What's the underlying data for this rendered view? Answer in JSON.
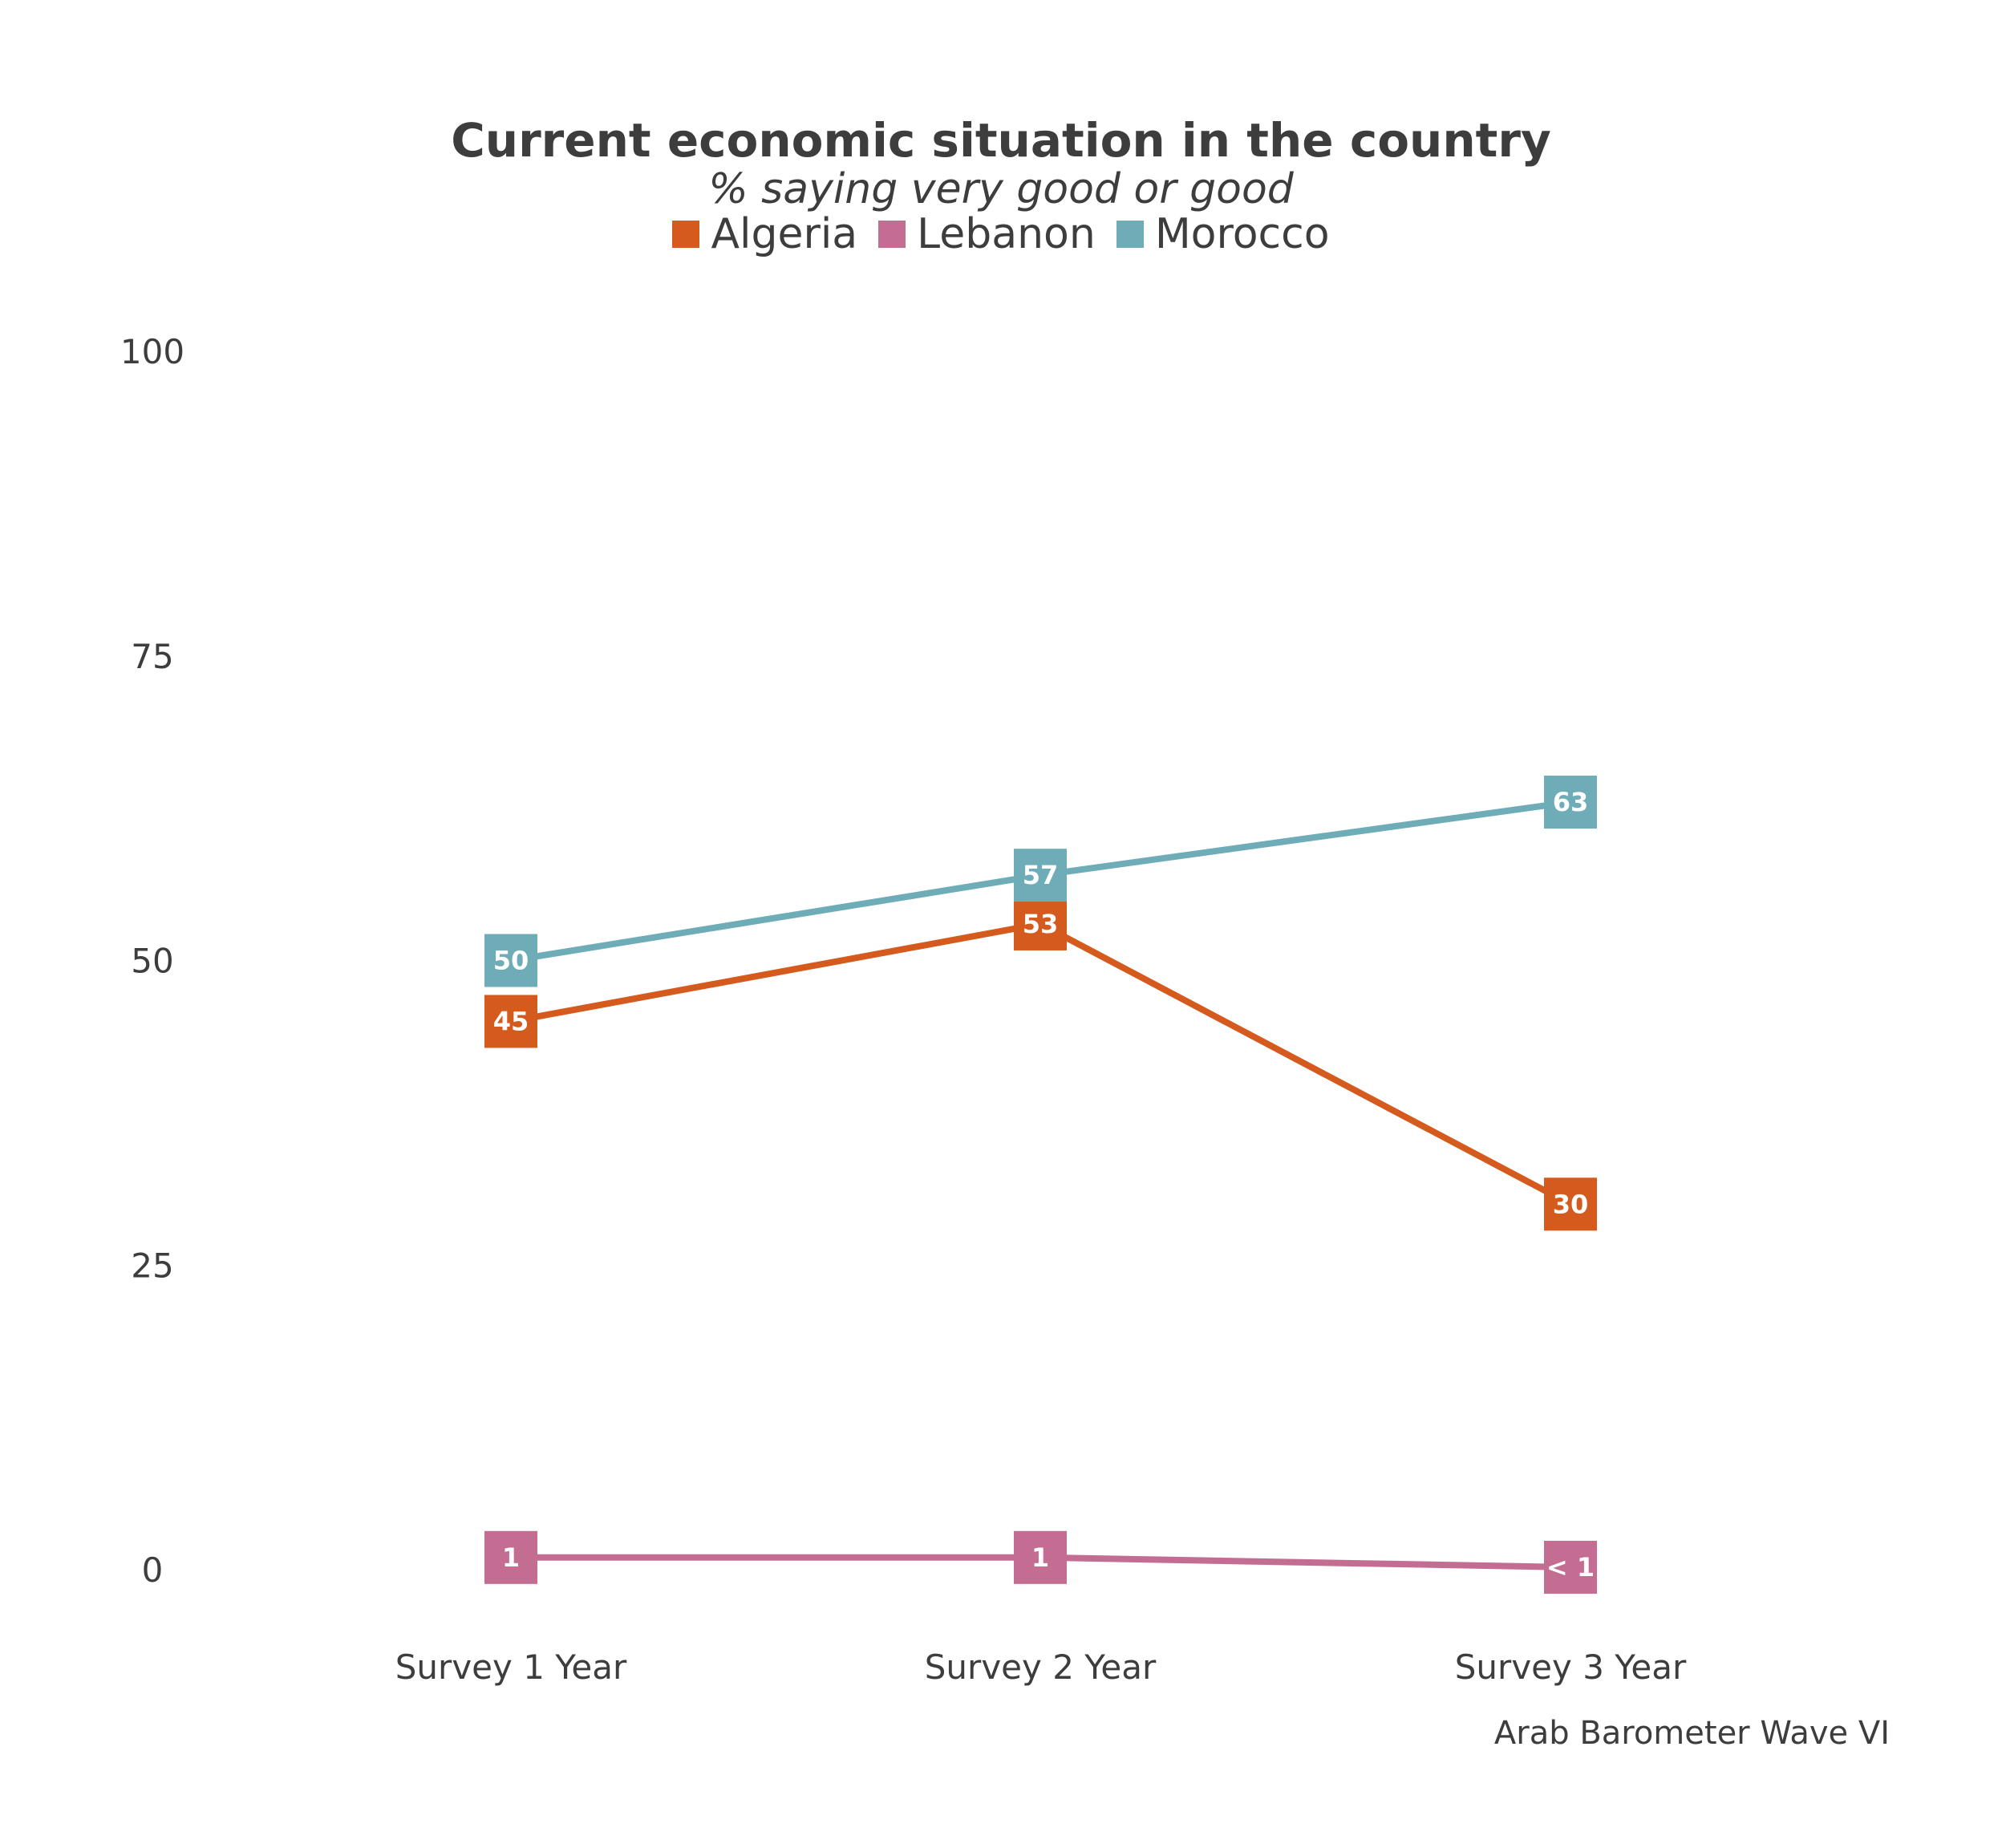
{
  "chart_data": {
    "type": "line",
    "title": "Current economic situation in the country",
    "subtitle": "% saying very good or good",
    "categories": [
      "Survey 1 Year",
      "Survey 2 Year",
      "Survey 3 Year"
    ],
    "ylim": [
      0,
      100
    ],
    "yticks": [
      "0",
      "25",
      "50",
      "75",
      "100"
    ],
    "grid": false,
    "legend_position": "top",
    "series": [
      {
        "name": "Algeria",
        "color": "#d55a1e",
        "values": [
          45,
          53,
          30
        ],
        "labels": [
          "45",
          "53",
          "30"
        ]
      },
      {
        "name": "Lebanon",
        "color": "#c46d93",
        "values": [
          1,
          1,
          0.2
        ],
        "labels": [
          "1",
          "1",
          "< 1"
        ]
      },
      {
        "name": "Morocco",
        "color": "#6eadb8",
        "values": [
          50,
          57,
          63
        ],
        "labels": [
          "50",
          "57",
          "63"
        ]
      }
    ],
    "source": "Arab Barometer Wave VI"
  }
}
